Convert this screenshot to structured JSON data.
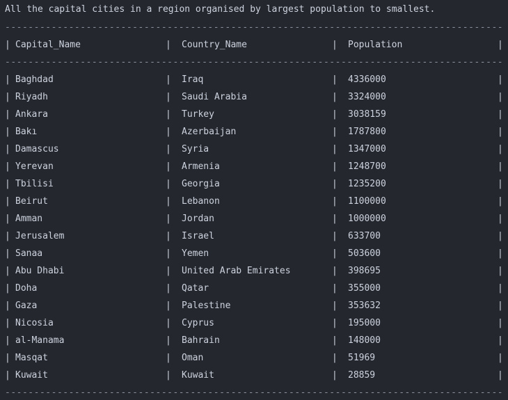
{
  "console": {
    "title": "All the capital cities in a region organised by largest population to smallest.",
    "separator": "--------------------------------------------------------------------------------------------------------------",
    "pipe": "|"
  },
  "table": {
    "headers": {
      "capital": "Capital_Name",
      "country": "Country_Name",
      "population": "Population"
    },
    "rows": [
      {
        "capital": "Baghdad",
        "country": "Iraq",
        "population": "4336000"
      },
      {
        "capital": "Riyadh",
        "country": "Saudi Arabia",
        "population": "3324000"
      },
      {
        "capital": "Ankara",
        "country": "Turkey",
        "population": "3038159"
      },
      {
        "capital": "Bakı",
        "country": "Azerbaijan",
        "population": "1787800"
      },
      {
        "capital": "Damascus",
        "country": "Syria",
        "population": "1347000"
      },
      {
        "capital": "Yerevan",
        "country": "Armenia",
        "population": "1248700"
      },
      {
        "capital": "Tbilisi",
        "country": "Georgia",
        "population": "1235200"
      },
      {
        "capital": "Beirut",
        "country": "Lebanon",
        "population": "1100000"
      },
      {
        "capital": "Amman",
        "country": "Jordan",
        "population": "1000000"
      },
      {
        "capital": "Jerusalem",
        "country": "Israel",
        "population": "633700"
      },
      {
        "capital": "Sanaa",
        "country": "Yemen",
        "population": "503600"
      },
      {
        "capital": "Abu Dhabi",
        "country": "United Arab Emirates",
        "population": "398695"
      },
      {
        "capital": "Doha",
        "country": "Qatar",
        "population": "355000"
      },
      {
        "capital": "Gaza",
        "country": "Palestine",
        "population": "353632"
      },
      {
        "capital": "Nicosia",
        "country": "Cyprus",
        "population": "195000"
      },
      {
        "capital": "al-Manama",
        "country": "Bahrain",
        "population": "148000"
      },
      {
        "capital": "Masqat",
        "country": "Oman",
        "population": "51969"
      },
      {
        "capital": "Kuwait",
        "country": "Kuwait",
        "population": "28859"
      }
    ]
  }
}
